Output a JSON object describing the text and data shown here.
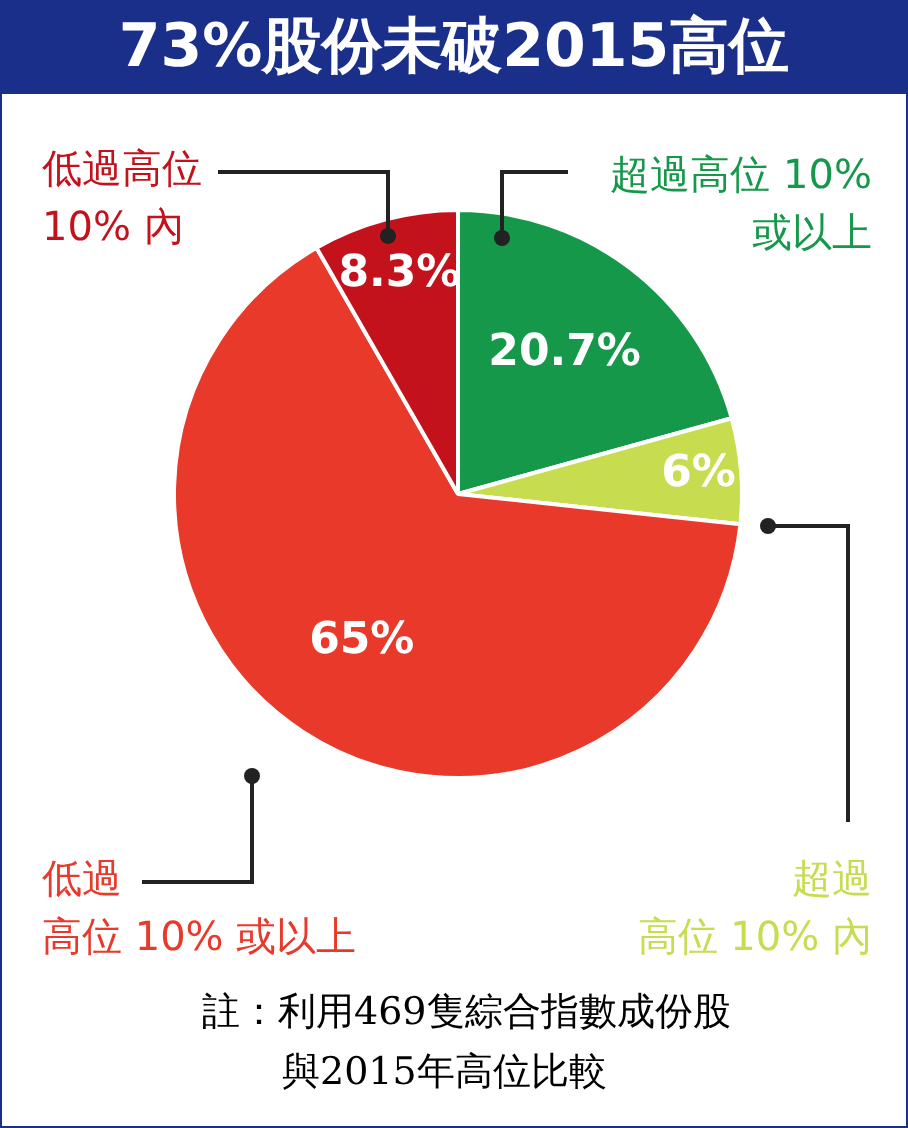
{
  "chart_data": {
    "type": "pie",
    "title": "73%股份未破2015高位",
    "categories": [
      "超過高位 10%或以上",
      "超過高位 10% 內",
      "低過高位 10% 或以上",
      "低過高位10% 內"
    ],
    "values": [
      20.7,
      6,
      65,
      8.3
    ],
    "colors": [
      "#16984a",
      "#c8dc50",
      "#e8392a",
      "#c4121c"
    ],
    "value_labels": [
      "20.7%",
      "6%",
      "65%",
      "8.3%"
    ],
    "legend": false,
    "annotations": [
      "註：利用469隻綜合指數成份股與2015年高位比較"
    ]
  }
}
